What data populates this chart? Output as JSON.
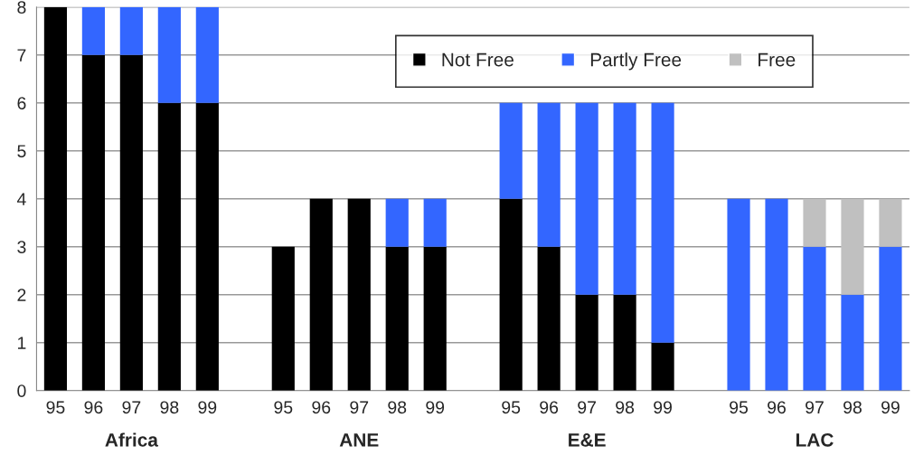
{
  "chart_data": {
    "type": "bar",
    "stacked": true,
    "categories": [
      "95",
      "96",
      "97",
      "98",
      "99",
      null,
      "95",
      "96",
      "97",
      "98",
      "99",
      null,
      "95",
      "96",
      "97",
      "98",
      "99",
      null,
      "95",
      "96",
      "97",
      "98",
      "99"
    ],
    "series": [
      {
        "name": "Not Free",
        "color": "#000000",
        "values": [
          8,
          7,
          7,
          6,
          6,
          null,
          3,
          4,
          4,
          3,
          3,
          null,
          4,
          3,
          2,
          2,
          1,
          null,
          0,
          0,
          0,
          0,
          0
        ]
      },
      {
        "name": "Partly Free",
        "color": "#3366ff",
        "values": [
          0,
          1,
          1,
          2,
          2,
          null,
          0,
          0,
          0,
          1,
          1,
          null,
          2,
          3,
          4,
          4,
          5,
          null,
          4,
          4,
          3,
          2,
          3
        ]
      },
      {
        "name": "Free",
        "color": "#c0c0c0",
        "values": [
          0,
          0,
          0,
          0,
          0,
          null,
          0,
          0,
          0,
          0,
          0,
          null,
          0,
          0,
          0,
          0,
          0,
          null,
          0,
          0,
          1,
          2,
          1
        ]
      }
    ],
    "annotations": [
      "Africa",
      "ANE",
      "E&E",
      "LAC"
    ],
    "ylim": [
      0,
      8
    ],
    "yticks": [
      0,
      1,
      2,
      3,
      4,
      5,
      6,
      7,
      8
    ],
    "grid": "y",
    "legend": "top right"
  }
}
